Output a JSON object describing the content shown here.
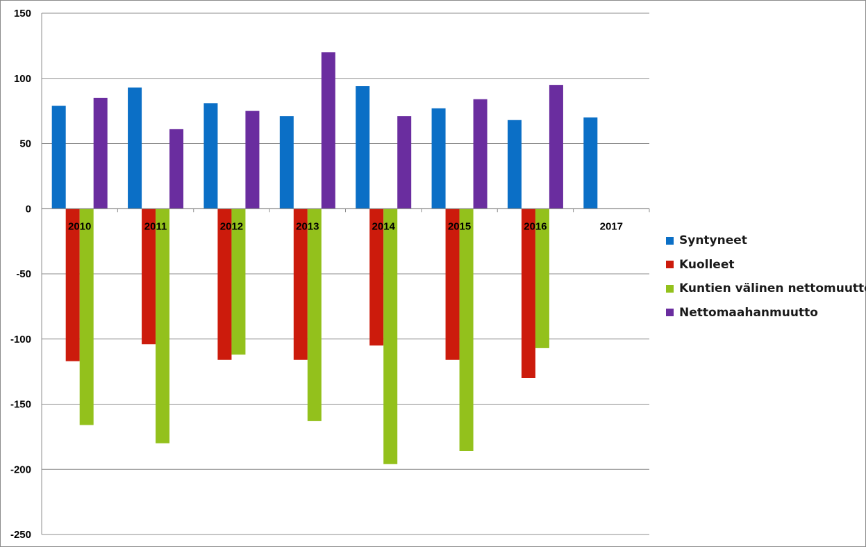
{
  "chart_data": {
    "type": "bar",
    "categories": [
      "2010",
      "2011",
      "2012",
      "2013",
      "2014",
      "2015",
      "2016",
      "2017"
    ],
    "series": [
      {
        "name": "Syntyneet",
        "color": "#0B6FC6",
        "values": [
          79,
          93,
          81,
          71,
          94,
          77,
          68,
          70
        ]
      },
      {
        "name": "Kuolleet",
        "color": "#CC1B0C",
        "values": [
          -117,
          -104,
          -116,
          -116,
          -105,
          -116,
          -130,
          null
        ]
      },
      {
        "name": "Kuntien välinen nettomuutto",
        "color": "#93C11C",
        "values": [
          -166,
          -180,
          -112,
          -163,
          -196,
          -186,
          -107,
          null
        ]
      },
      {
        "name": "Nettomaahanmuutto",
        "color": "#6A2D9F",
        "values": [
          85,
          61,
          75,
          120,
          71,
          84,
          95,
          null
        ]
      }
    ],
    "yticks": [
      "150",
      "100",
      "50",
      "0",
      "-50",
      "-100",
      "-150",
      "-200",
      "-250"
    ],
    "ylim": [
      -250,
      150
    ],
    "grid": true,
    "legend": "right"
  }
}
